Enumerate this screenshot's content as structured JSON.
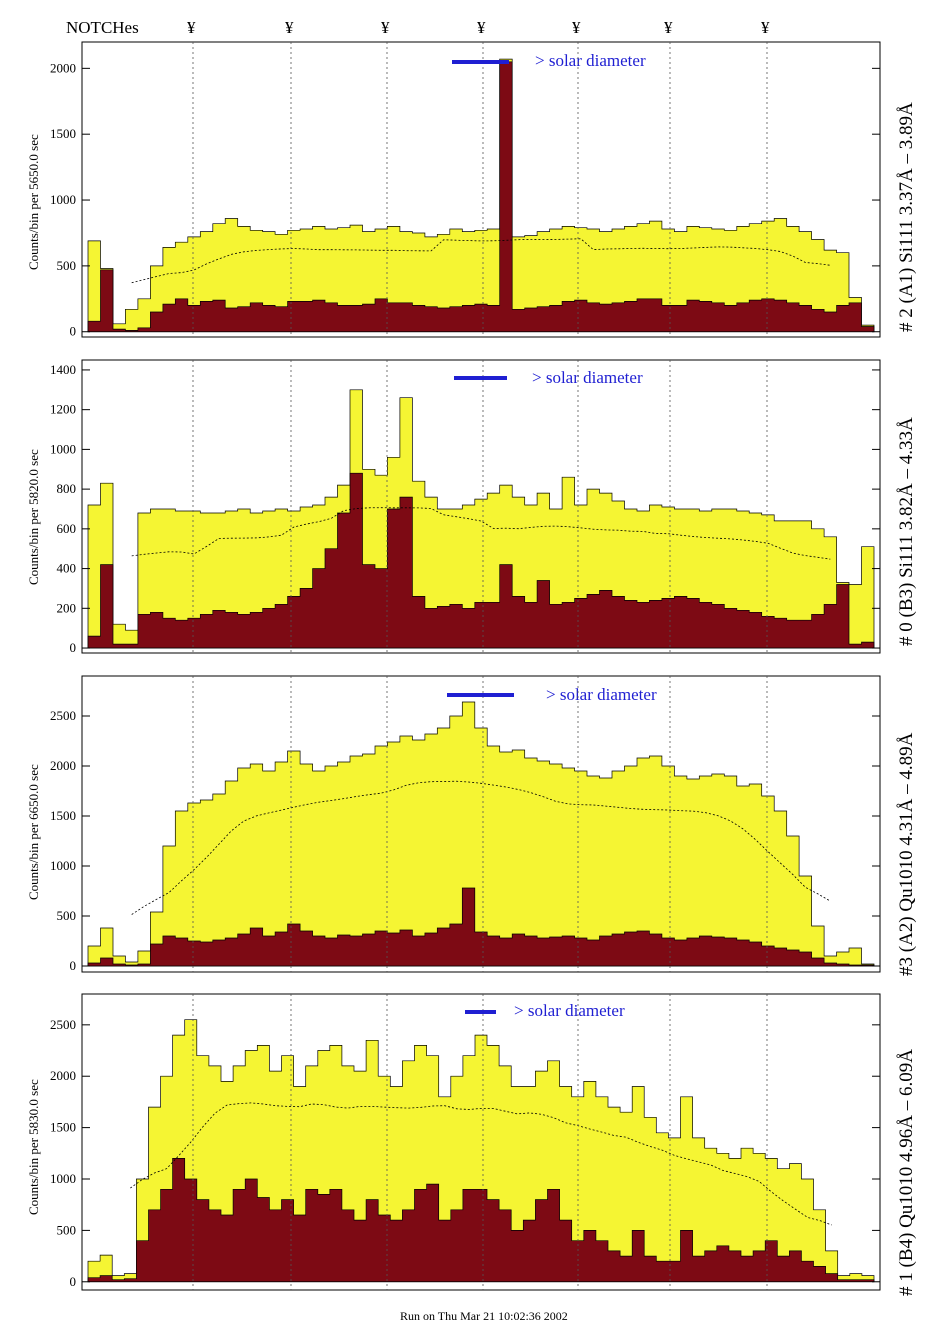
{
  "header": {
    "notches_label": "NOTCHes",
    "notch_symbol": "¥"
  },
  "footer": {
    "run_text": "Run on Thu Mar 21 10:02:36 2002"
  },
  "colors": {
    "upper_fill": "#f5f533",
    "lower_fill": "#7d0a14",
    "marker": "#1f1fd2",
    "outline": "#000000"
  },
  "chart_data": [
    {
      "type": "area",
      "side_label": "# 2 (A1) Si111  3.37Å – 3.89Å",
      "ylabel": "Counts/bin per  5650.0 sec",
      "solar_label": "> solar diameter",
      "yticks": [
        0,
        500,
        1000,
        1500,
        2000
      ],
      "ylim": [
        -40,
        2200
      ],
      "series": [
        {
          "values": [
            690,
            480,
            60,
            170,
            250,
            500,
            640,
            680,
            720,
            760,
            820,
            860,
            800,
            770,
            760,
            740,
            770,
            780,
            800,
            780,
            790,
            810,
            760,
            780,
            800,
            760,
            750,
            720,
            740,
            780,
            760,
            770,
            780,
            2070,
            720,
            730,
            760,
            780,
            800,
            790,
            780,
            760,
            780,
            800,
            820,
            840,
            780,
            760,
            800,
            790,
            780,
            770,
            800,
            820,
            840,
            860,
            800,
            760,
            700,
            620,
            600,
            260,
            50
          ]
        },
        {
          "values": [
            80,
            470,
            20,
            10,
            30,
            150,
            210,
            250,
            200,
            230,
            240,
            180,
            190,
            220,
            200,
            190,
            230,
            230,
            240,
            220,
            200,
            200,
            210,
            250,
            220,
            220,
            200,
            190,
            180,
            190,
            200,
            210,
            200,
            2050,
            170,
            180,
            190,
            200,
            230,
            240,
            220,
            210,
            220,
            230,
            250,
            250,
            200,
            200,
            240,
            230,
            220,
            200,
            220,
            240,
            250,
            240,
            220,
            200,
            170,
            150,
            200,
            220,
            40
          ]
        }
      ]
    },
    {
      "type": "area",
      "side_label": "# 0 (B3) Si111  3.82Å – 4.33Å",
      "ylabel": "Counts/bin per  5820.0 sec",
      "solar_label": "> solar diameter",
      "yticks": [
        0,
        200,
        400,
        600,
        800,
        1000,
        1200,
        1400
      ],
      "ylim": [
        -25,
        1450
      ],
      "series": [
        {
          "values": [
            720,
            830,
            120,
            90,
            680,
            700,
            700,
            690,
            690,
            680,
            680,
            690,
            700,
            680,
            690,
            700,
            690,
            710,
            720,
            760,
            820,
            1300,
            900,
            870,
            960,
            1260,
            840,
            760,
            700,
            700,
            720,
            750,
            780,
            820,
            760,
            720,
            780,
            700,
            860,
            720,
            800,
            780,
            740,
            700,
            690,
            720,
            710,
            700,
            700,
            690,
            700,
            700,
            690,
            680,
            670,
            640,
            640,
            640,
            600,
            560,
            330,
            320,
            510
          ]
        },
        {
          "values": [
            60,
            420,
            20,
            20,
            170,
            180,
            150,
            140,
            150,
            170,
            190,
            180,
            170,
            180,
            200,
            220,
            260,
            300,
            400,
            500,
            680,
            880,
            420,
            400,
            700,
            760,
            260,
            200,
            210,
            220,
            200,
            230,
            230,
            420,
            260,
            230,
            340,
            220,
            230,
            250,
            270,
            290,
            260,
            240,
            230,
            240,
            250,
            260,
            250,
            230,
            220,
            200,
            190,
            180,
            160,
            150,
            140,
            140,
            170,
            220,
            320,
            20,
            30
          ]
        }
      ]
    },
    {
      "type": "area",
      "side_label": "#3 (A2) Qu1010  4.31Å – 4.89Å",
      "ylabel": "Counts/bin per  6650.0 sec",
      "solar_label": "> solar diameter",
      "yticks": [
        0,
        500,
        1000,
        1500,
        2000,
        2500
      ],
      "ylim": [
        -60,
        2900
      ],
      "series": [
        {
          "values": [
            200,
            380,
            100,
            40,
            150,
            540,
            1200,
            1550,
            1630,
            1660,
            1720,
            1850,
            1980,
            2020,
            1950,
            2040,
            2150,
            2020,
            1950,
            2000,
            2040,
            2100,
            2120,
            2200,
            2240,
            2300,
            2260,
            2320,
            2380,
            2500,
            2640,
            2380,
            2200,
            2140,
            2160,
            2080,
            2050,
            2020,
            1980,
            1950,
            1900,
            1880,
            1950,
            2000,
            2080,
            2100,
            2000,
            1900,
            1870,
            1900,
            1920,
            1900,
            1800,
            1820,
            1700,
            1550,
            1300,
            900,
            400,
            100,
            140,
            180,
            20
          ]
        },
        {
          "values": [
            30,
            80,
            20,
            10,
            20,
            220,
            300,
            280,
            250,
            240,
            260,
            280,
            320,
            380,
            300,
            340,
            420,
            350,
            300,
            280,
            310,
            300,
            320,
            350,
            330,
            360,
            300,
            330,
            380,
            420,
            780,
            340,
            300,
            280,
            320,
            300,
            280,
            290,
            300,
            280,
            260,
            300,
            320,
            340,
            350,
            320,
            280,
            260,
            280,
            300,
            290,
            280,
            260,
            240,
            200,
            180,
            160,
            140,
            80,
            30,
            20,
            10,
            10
          ]
        }
      ]
    },
    {
      "type": "area",
      "side_label": "# 1 (B4) Qu1010 4.96Å – 6.09Å",
      "ylabel": "Counts/bin per  5830.0 sec",
      "solar_label": "> solar diameter",
      "yticks": [
        0,
        500,
        1000,
        1500,
        2000,
        2500
      ],
      "ylim": [
        -80,
        2800
      ],
      "series": [
        {
          "values": [
            200,
            260,
            60,
            80,
            1000,
            1700,
            2000,
            2400,
            2550,
            2200,
            2100,
            1950,
            2100,
            2250,
            2300,
            2050,
            2200,
            1900,
            2100,
            2250,
            2300,
            2100,
            2050,
            2350,
            2000,
            1900,
            2150,
            2300,
            2200,
            1800,
            2000,
            2200,
            2400,
            2300,
            2100,
            1900,
            1900,
            2050,
            2150,
            1900,
            1800,
            1950,
            1800,
            1700,
            1650,
            1900,
            1600,
            1450,
            1400,
            1800,
            1400,
            1300,
            1250,
            1200,
            1300,
            1250,
            1200,
            1100,
            1150,
            1000,
            700,
            300,
            60,
            80,
            60
          ]
        },
        {
          "values": [
            40,
            60,
            20,
            30,
            400,
            700,
            900,
            1200,
            1000,
            800,
            700,
            650,
            900,
            1000,
            820,
            700,
            800,
            650,
            900,
            850,
            900,
            700,
            600,
            800,
            650,
            600,
            700,
            900,
            950,
            600,
            700,
            900,
            900,
            800,
            700,
            500,
            600,
            800,
            900,
            600,
            400,
            500,
            400,
            300,
            250,
            500,
            250,
            200,
            200,
            500,
            250,
            300,
            350,
            300,
            250,
            300,
            400,
            250,
            300,
            200,
            150,
            80,
            20,
            20,
            20
          ]
        }
      ]
    }
  ]
}
